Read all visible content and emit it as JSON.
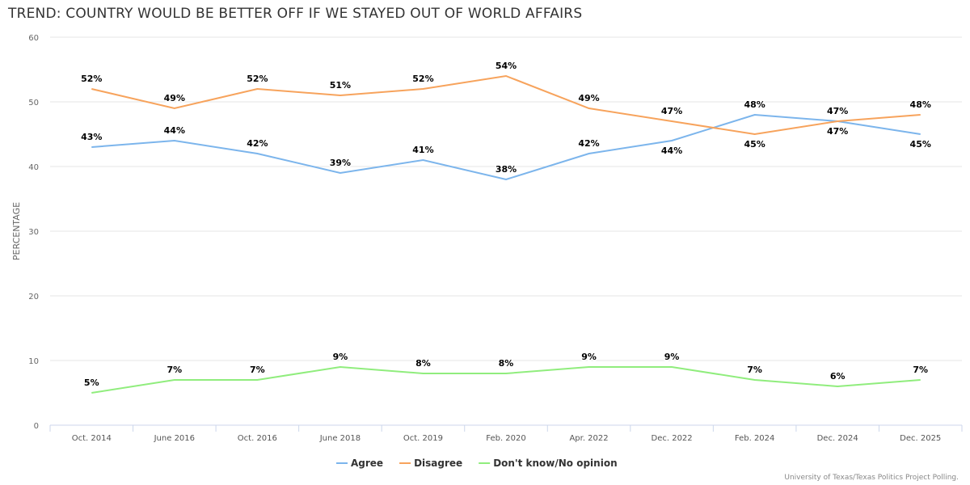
{
  "chart_data": {
    "type": "line",
    "title": "TREND: COUNTRY WOULD BE BETTER OFF IF WE STAYED OUT OF WORLD AFFAIRS",
    "xlabel": "",
    "ylabel": "PERCENTAGE",
    "ylim": [
      0,
      60
    ],
    "yticks": [
      0,
      10,
      20,
      30,
      40,
      50,
      60
    ],
    "grid": true,
    "legend": "bottom-center",
    "categories": [
      "Oct. 2014",
      "June 2016",
      "Oct. 2016",
      "June 2018",
      "Oct. 2019",
      "Feb. 2020",
      "Apr. 2022",
      "Dec. 2022",
      "Feb. 2024",
      "Dec. 2024",
      "Dec. 2025"
    ],
    "series": [
      {
        "name": "Agree",
        "color": "#7cb5ec",
        "values": [
          43,
          44,
          42,
          39,
          41,
          38,
          42,
          44,
          48,
          47,
          45
        ]
      },
      {
        "name": "Disagree",
        "color": "#f7a35c",
        "values": [
          52,
          49,
          52,
          51,
          52,
          54,
          49,
          47,
          45,
          47,
          48
        ]
      },
      {
        "name": "Don't know/No opinion",
        "color": "#90ed7d",
        "values": [
          5,
          7,
          7,
          9,
          8,
          8,
          9,
          9,
          7,
          6,
          7
        ]
      }
    ],
    "data_label_suffix": "%"
  },
  "credit": "University of Texas/Texas Politics Project Polling."
}
